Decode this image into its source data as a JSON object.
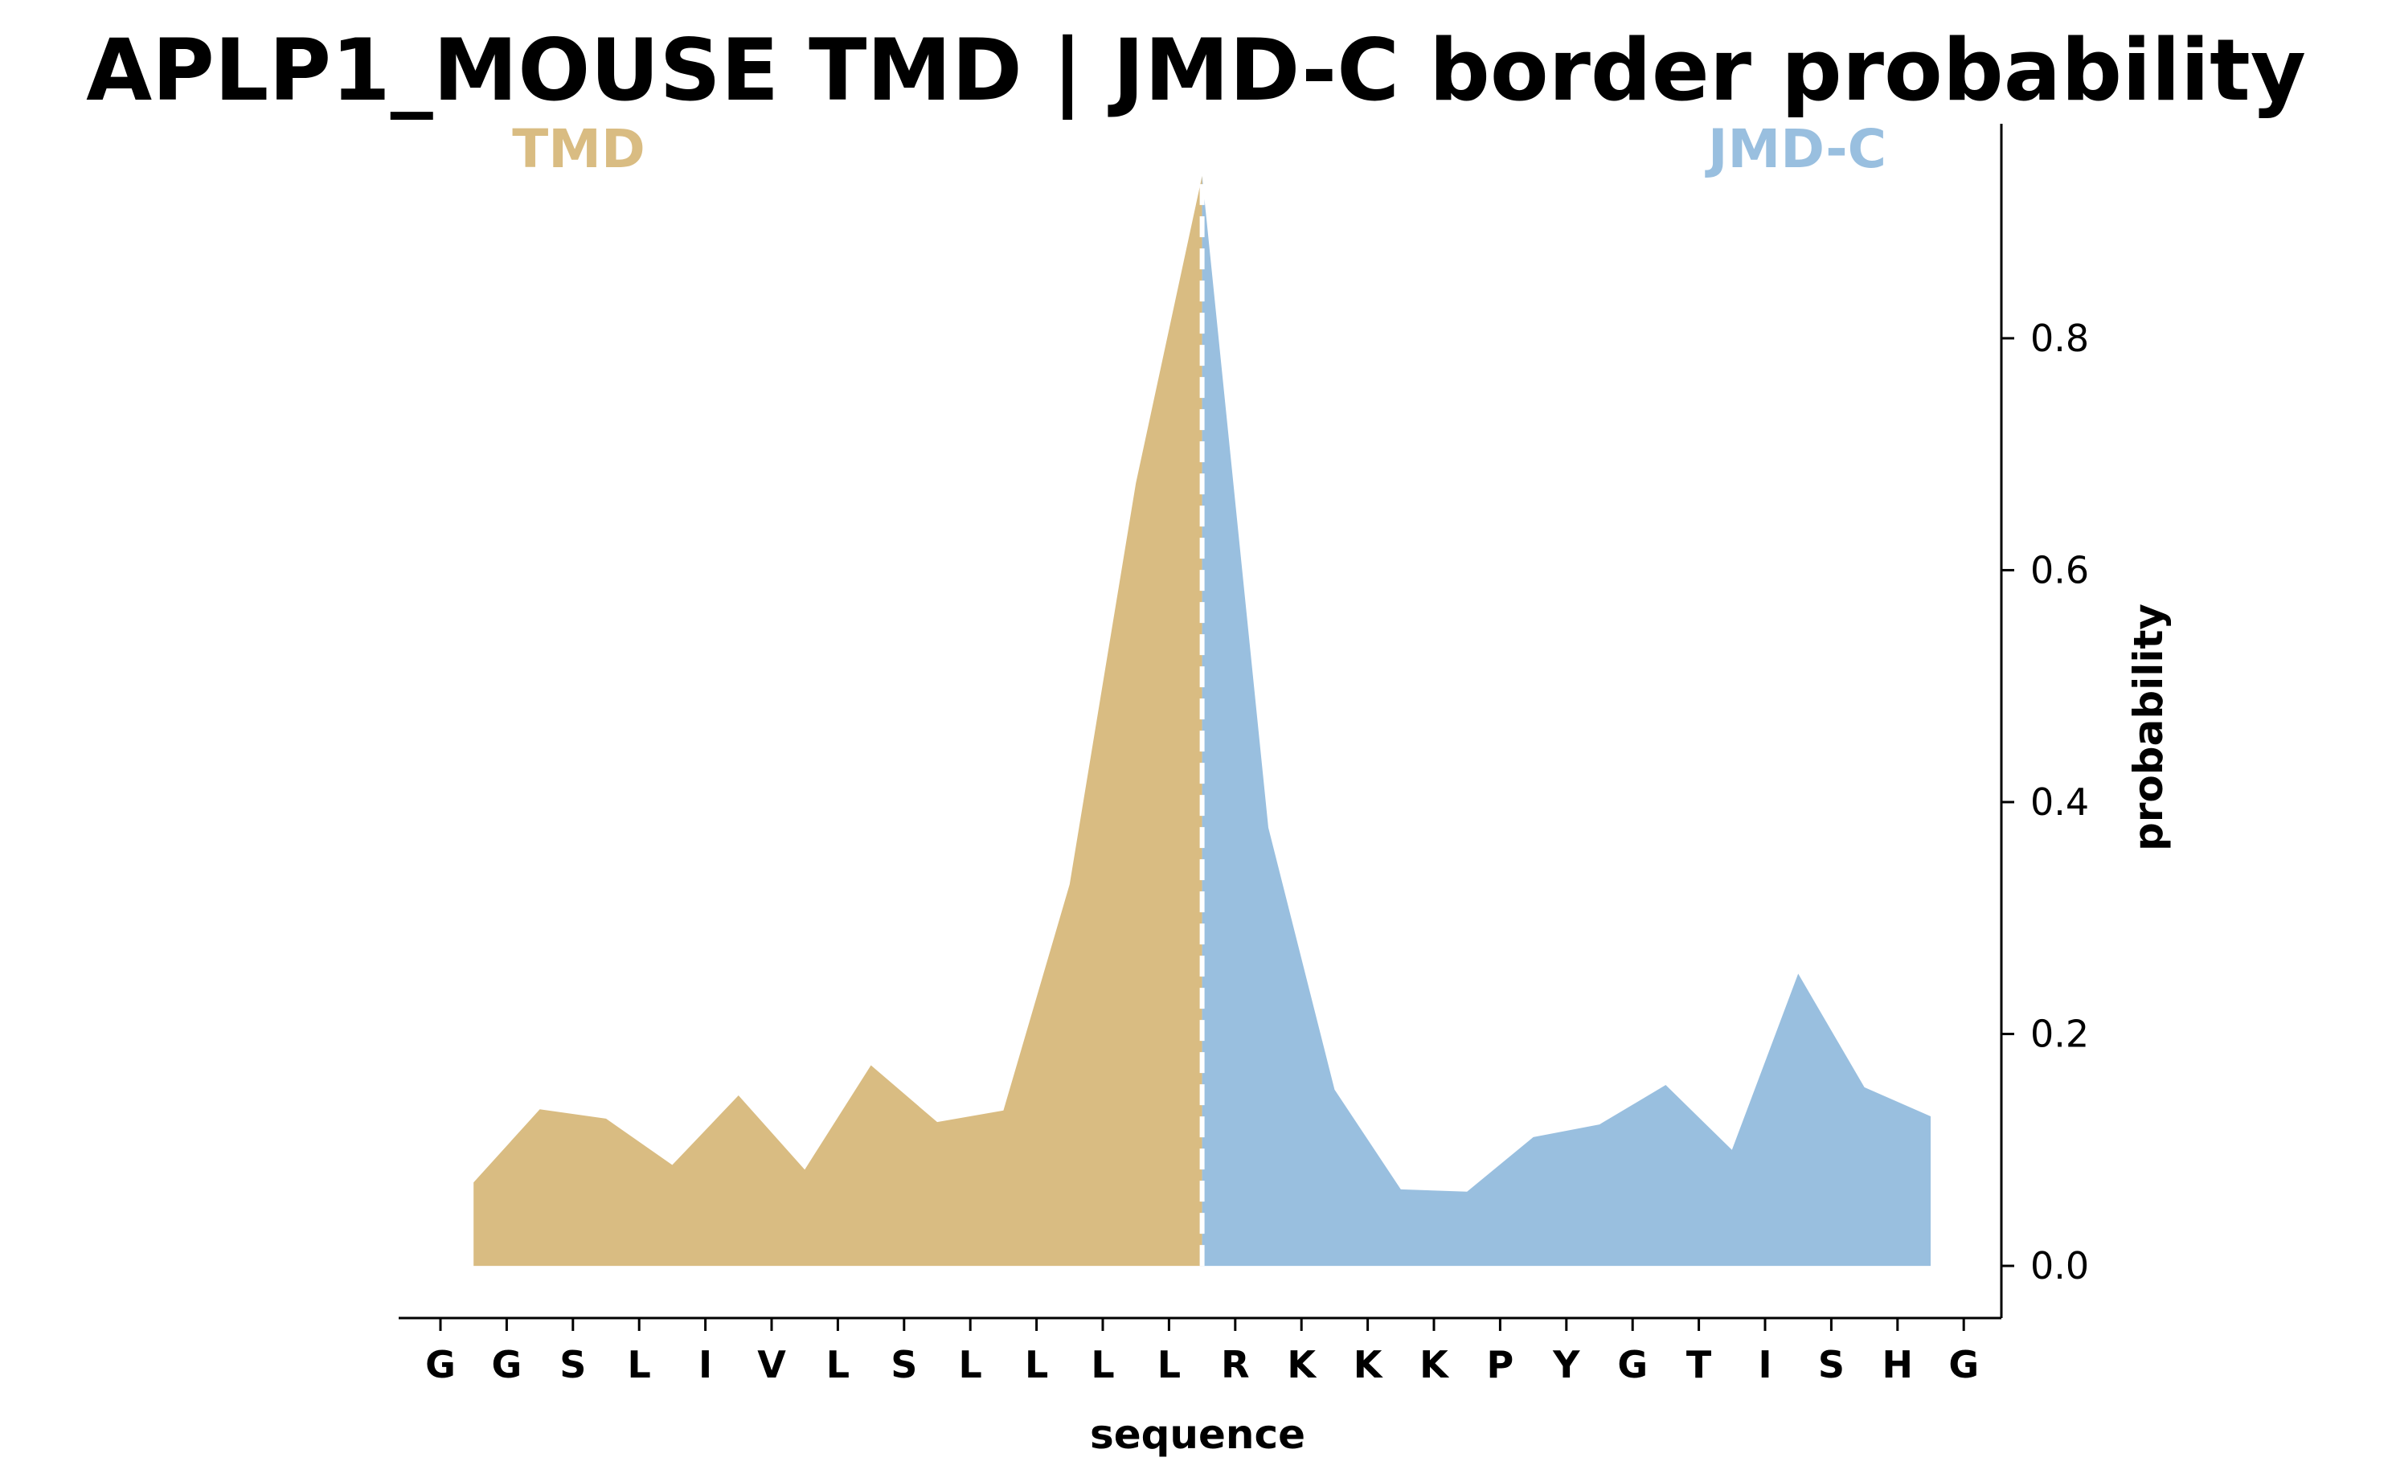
{
  "chart_data": {
    "type": "area",
    "title": "APLP1_MOUSE TMD | JMD-C border probability",
    "xlabel": "sequence",
    "ylabel": "probability",
    "ylim": [
      -0.045,
      0.985
    ],
    "y_ticks": [
      "0.0",
      "0.2",
      "0.4",
      "0.6",
      "0.8"
    ],
    "y_tick_values": [
      0.0,
      0.2,
      0.4,
      0.6,
      0.8
    ],
    "categories": [
      "G",
      "G",
      "S",
      "L",
      "I",
      "V",
      "L",
      "S",
      "L",
      "L",
      "L",
      "L",
      "R",
      "K",
      "K",
      "K",
      "P",
      "Y",
      "G",
      "T",
      "I",
      "S",
      "H",
      "G"
    ],
    "boundary_x": 11.5,
    "regions": [
      {
        "name": "TMD",
        "color": "#d9bc82"
      },
      {
        "name": "JMD-C",
        "color": "#99bfdf"
      }
    ],
    "series": [
      {
        "region": "TMD",
        "x": [
          0.5,
          1.5,
          2.5,
          3.5,
          4.5,
          5.5,
          6.5,
          7.5,
          8.5,
          9.5,
          10.5,
          11.5
        ],
        "values": [
          0.072,
          0.135,
          0.127,
          0.087,
          0.147,
          0.083,
          0.173,
          0.124,
          0.134,
          0.329,
          0.675,
          0.94
        ]
      },
      {
        "region": "JMD-C",
        "x": [
          11.5,
          12.5,
          13.5,
          14.5,
          15.5,
          16.5,
          17.5,
          18.5,
          19.5,
          20.5,
          21.5,
          22.5
        ],
        "values": [
          0.94,
          0.378,
          0.152,
          0.066,
          0.064,
          0.111,
          0.122,
          0.156,
          0.1,
          0.252,
          0.154,
          0.129
        ]
      }
    ],
    "grid": false,
    "y_axis_position": "right"
  }
}
